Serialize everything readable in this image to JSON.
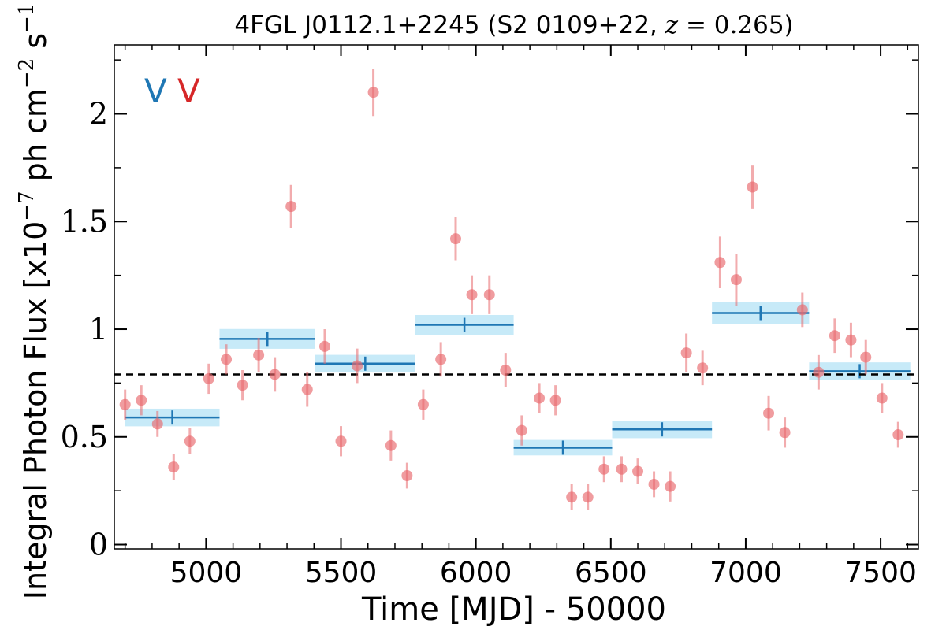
{
  "chart_data": {
    "type": "scatter",
    "title": {
      "prefix": "4FGL J0112.1+2245 (S2 0109+22, ",
      "z_var": "z",
      "z_eq": " = ",
      "z_val": "0.265",
      "suffix": ")"
    },
    "xlabel": "Time [MJD] - 50000",
    "ylabel": {
      "prefix": "Integral Photon Flux [x10",
      "exp1": "−7",
      "mid": " ph cm",
      "exp2": "−2",
      "mid2": " s",
      "exp3": "−1",
      "suffix": "]"
    },
    "xlim": [
      4660,
      7640
    ],
    "ylim": [
      -0.02,
      2.32
    ],
    "x_ticks": [
      5000,
      5500,
      6000,
      6500,
      7000,
      7500
    ],
    "y_ticks": [
      0,
      0.5,
      1,
      1.5,
      2
    ],
    "y_tick_labels": [
      "0",
      "0.5",
      "1",
      "1.5",
      "2"
    ],
    "x_minor_step": 100,
    "y_minor_step": 0.25,
    "mean_flux": 0.79,
    "markers": [
      {
        "label": "V",
        "color": "#1f77b4"
      },
      {
        "label": "V",
        "color": "#d62728"
      }
    ],
    "colors": {
      "points": "#e8676c",
      "bayesian_blocks": "#1f77b4",
      "block_band": "#c7eaf8",
      "mean_line": "#000000"
    },
    "series": [
      {
        "x": [
          4700,
          4760,
          4820,
          4880,
          4940,
          5010,
          5075,
          5135,
          5195,
          5255,
          5315,
          5375,
          5440,
          5500,
          5560,
          5620,
          5685,
          5745,
          5805,
          5870,
          5925,
          5985,
          6050,
          6110,
          6170,
          6235,
          6295,
          6355,
          6415,
          6475,
          6540,
          6600,
          6660,
          6720,
          6780,
          6840,
          6905,
          6965,
          7025,
          7085,
          7145,
          7210,
          7270,
          7330,
          7390,
          7445,
          7505,
          7565
        ],
        "y": [
          0.65,
          0.67,
          0.56,
          0.36,
          0.48,
          0.77,
          0.86,
          0.74,
          0.88,
          0.79,
          1.57,
          0.72,
          0.92,
          0.48,
          0.83,
          2.1,
          0.46,
          0.32,
          0.65,
          0.86,
          1.42,
          1.16,
          1.16,
          0.81,
          0.53,
          0.68,
          0.67,
          0.22,
          0.22,
          0.35,
          0.35,
          0.34,
          0.28,
          0.27,
          0.89,
          0.82,
          1.31,
          1.23,
          1.66,
          0.61,
          0.52,
          1.09,
          0.8,
          0.97,
          0.95,
          0.87,
          0.68,
          0.51
        ],
        "yerr": [
          0.07,
          0.07,
          0.06,
          0.06,
          0.06,
          0.07,
          0.07,
          0.07,
          0.08,
          0.08,
          0.1,
          0.08,
          0.08,
          0.07,
          0.08,
          0.11,
          0.07,
          0.06,
          0.07,
          0.08,
          0.1,
          0.09,
          0.09,
          0.08,
          0.07,
          0.07,
          0.07,
          0.06,
          0.06,
          0.06,
          0.06,
          0.06,
          0.06,
          0.07,
          0.09,
          0.08,
          0.12,
          0.12,
          0.1,
          0.08,
          0.07,
          0.08,
          0.08,
          0.08,
          0.08,
          0.08,
          0.07,
          0.06
        ]
      }
    ],
    "bayesian_blocks": [
      {
        "x0": 4700,
        "x1": 5050,
        "y": 0.59,
        "err": 0.03
      },
      {
        "x0": 5050,
        "x1": 5405,
        "y": 0.955,
        "err": 0.035
      },
      {
        "x0": 5405,
        "x1": 5775,
        "y": 0.84,
        "err": 0.03
      },
      {
        "x0": 5775,
        "x1": 6140,
        "y": 1.02,
        "err": 0.035
      },
      {
        "x0": 6140,
        "x1": 6505,
        "y": 0.45,
        "err": 0.025
      },
      {
        "x0": 6505,
        "x1": 6875,
        "y": 0.535,
        "err": 0.03
      },
      {
        "x0": 6875,
        "x1": 7235,
        "y": 1.075,
        "err": 0.04
      },
      {
        "x0": 7235,
        "x1": 7610,
        "y": 0.805,
        "err": 0.03
      }
    ]
  }
}
